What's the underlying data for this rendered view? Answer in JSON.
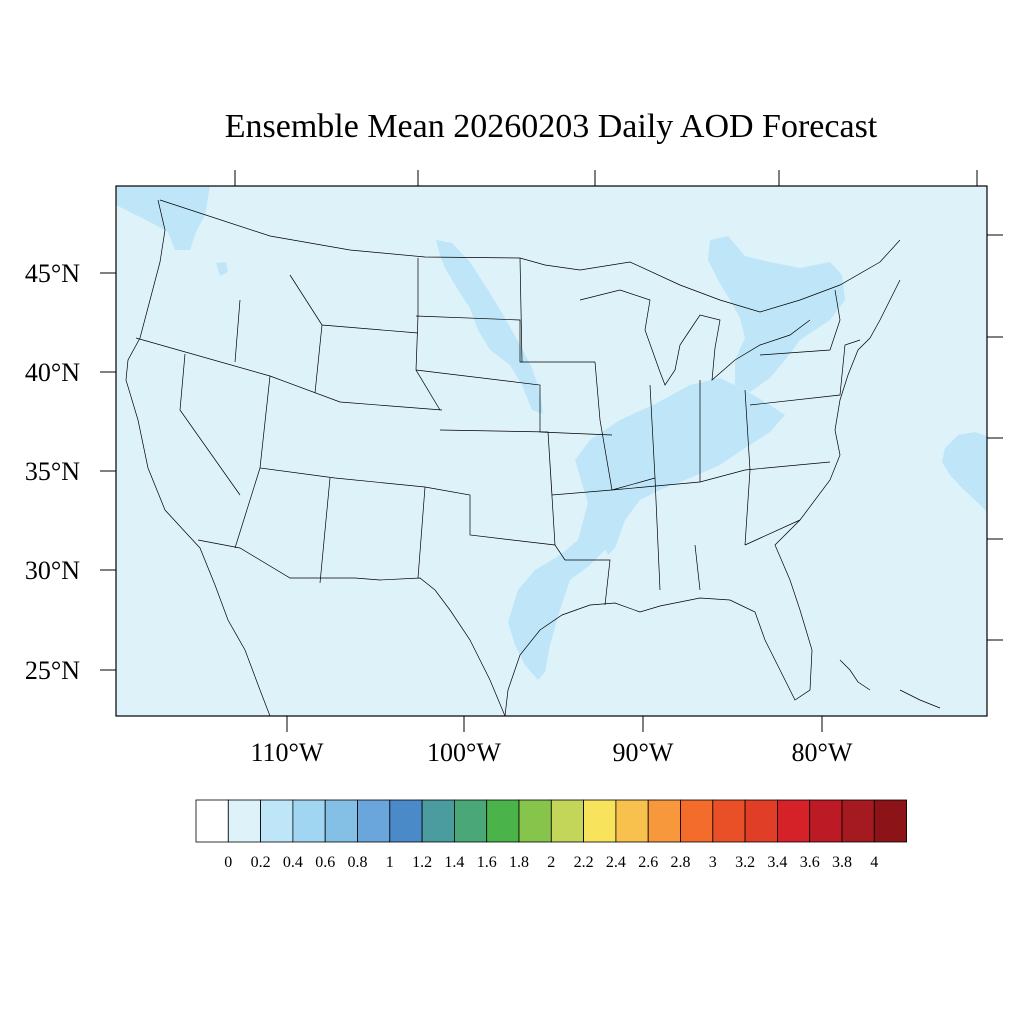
{
  "title": "Ensemble Mean 20260203 Daily AOD Forecast",
  "map": {
    "projection": "lambert-conformal",
    "region": "continental-us",
    "lat_labels": [
      "25°N",
      "30°N",
      "35°N",
      "40°N",
      "45°N"
    ],
    "lon_labels": [
      "110°W",
      "100°W",
      "90°W",
      "80°W"
    ],
    "background_value_class": "0.0-0.2",
    "enhanced_regions": [
      {
        "name": "north-dakota-south-dakota-band",
        "value_class": "0.2-0.4"
      },
      {
        "name": "ohio-valley-band",
        "value_class": "0.2-0.4"
      },
      {
        "name": "east-texas-louisiana-band",
        "value_class": "0.2-0.4"
      },
      {
        "name": "great-lakes-new-england-band",
        "value_class": "0.2-0.4"
      },
      {
        "name": "pacific-northwest-patch",
        "value_class": "0.2-0.4"
      },
      {
        "name": "atlantic-offshore-patch",
        "value_class": "0.2-0.4"
      }
    ]
  },
  "colorbar": {
    "labels": [
      "0",
      "0.2",
      "0.4",
      "0.6",
      "0.8",
      "1",
      "1.2",
      "1.4",
      "1.6",
      "1.8",
      "2",
      "2.2",
      "2.4",
      "2.6",
      "2.8",
      "3",
      "3.2",
      "3.4",
      "3.6",
      "3.8",
      "4"
    ],
    "colors": [
      "#ffffff",
      "#def2fa",
      "#bee6f8",
      "#a0d6f2",
      "#84c0e6",
      "#6aa6dc",
      "#4a8ac8",
      "#4a9c9e",
      "#4aa878",
      "#4ab44a",
      "#86c44c",
      "#c4d65a",
      "#f8e45c",
      "#f8c04c",
      "#f8983c",
      "#f46c2c",
      "#ea5028",
      "#e03e26",
      "#d42228",
      "#bc1a24",
      "#a41a20",
      "#8c1418"
    ]
  }
}
